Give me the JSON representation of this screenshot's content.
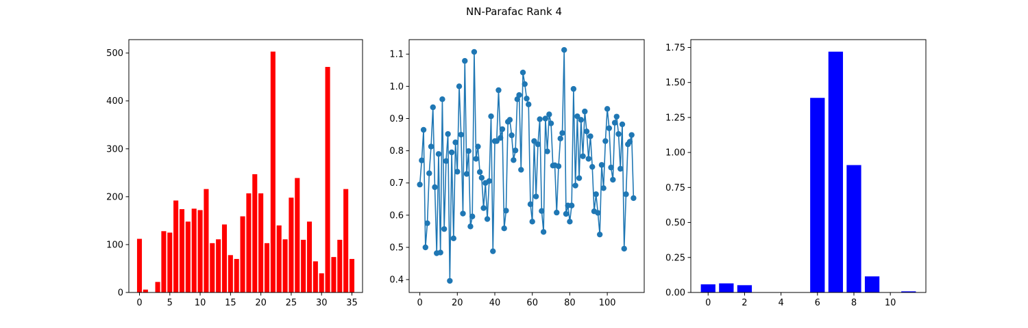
{
  "figure": {
    "title": "NN-Parafac Rank 4"
  },
  "chart_data": [
    {
      "type": "bar",
      "color": "#ff0000",
      "x": [
        0,
        1,
        2,
        3,
        4,
        5,
        6,
        7,
        8,
        9,
        10,
        11,
        12,
        13,
        14,
        15,
        16,
        17,
        18,
        19,
        20,
        21,
        22,
        23,
        24,
        25,
        26,
        27,
        28,
        29,
        30,
        31,
        32,
        33,
        34,
        35
      ],
      "values": [
        112,
        6,
        0,
        22,
        128,
        125,
        192,
        174,
        148,
        175,
        172,
        216,
        103,
        111,
        142,
        78,
        70,
        159,
        207,
        247,
        207,
        103,
        503,
        140,
        111,
        198,
        239,
        110,
        148,
        65,
        40,
        471,
        74,
        110,
        216,
        70
      ],
      "xlim": [
        -1.75,
        36.75
      ],
      "ylim": [
        0,
        528
      ],
      "xticks": [
        0,
        5,
        10,
        15,
        20,
        25,
        30,
        35
      ],
      "xtick_labels": [
        "0",
        "5",
        "10",
        "15",
        "20",
        "25",
        "30",
        "35"
      ],
      "yticks": [
        0,
        100,
        200,
        300,
        400,
        500
      ],
      "ytick_labels": [
        "0",
        "100",
        "200",
        "300",
        "400",
        "500"
      ],
      "bar_width": 0.8
    },
    {
      "type": "line",
      "color": "#1f77b4",
      "markers": true,
      "x": [
        0,
        1,
        2,
        3,
        4,
        5,
        6,
        7,
        8,
        9,
        10,
        11,
        12,
        13,
        14,
        15,
        16,
        17,
        18,
        19,
        20,
        21,
        22,
        23,
        24,
        25,
        26,
        27,
        28,
        29,
        30,
        31,
        32,
        33,
        34,
        35,
        36,
        37,
        38,
        39,
        40,
        41,
        42,
        43,
        44,
        45,
        46,
        47,
        48,
        49,
        50,
        51,
        52,
        53,
        54,
        55,
        56,
        57,
        58,
        59,
        60,
        61,
        62,
        63,
        64,
        65,
        66,
        67,
        68,
        69,
        70,
        71,
        72,
        73,
        74,
        75,
        76,
        77,
        78,
        79,
        80,
        81,
        82,
        83,
        84,
        85,
        86,
        87,
        88,
        89,
        90,
        91,
        92,
        93,
        94,
        95,
        96,
        97,
        98,
        99,
        100,
        101,
        102,
        103,
        104,
        105,
        106,
        107,
        108,
        109,
        110,
        111,
        112,
        113,
        114
      ],
      "values": [
        0.695,
        0.77,
        0.865,
        0.5,
        0.575,
        0.73,
        0.813,
        0.935,
        0.687,
        0.482,
        0.79,
        0.484,
        0.96,
        0.557,
        0.768,
        0.852,
        0.396,
        0.795,
        0.528,
        0.826,
        0.735,
        1.0,
        0.85,
        0.605,
        1.079,
        0.728,
        0.799,
        0.565,
        0.596,
        1.107,
        0.775,
        0.813,
        0.734,
        0.716,
        0.622,
        0.7,
        0.588,
        0.706,
        0.907,
        0.488,
        0.83,
        0.83,
        0.988,
        0.84,
        0.867,
        0.559,
        0.614,
        0.89,
        0.896,
        0.848,
        0.771,
        0.801,
        0.96,
        0.973,
        0.741,
        1.043,
        1.007,
        0.962,
        0.944,
        0.634,
        0.58,
        0.83,
        0.658,
        0.82,
        0.898,
        0.613,
        0.548,
        0.9,
        0.798,
        0.913,
        0.885,
        0.754,
        0.755,
        0.608,
        0.752,
        0.838,
        0.855,
        1.113,
        0.604,
        0.63,
        0.58,
        0.63,
        0.992,
        0.692,
        0.907,
        0.715,
        0.896,
        0.783,
        0.922,
        0.86,
        0.775,
        0.845,
        0.75,
        0.612,
        0.665,
        0.607,
        0.54,
        0.756,
        0.684,
        0.83,
        0.93,
        0.87,
        0.748,
        0.71,
        0.887,
        0.906,
        0.852,
        0.744,
        0.882,
        0.496,
        0.665,
        0.82,
        0.828,
        0.849,
        0.653
      ],
      "xlim": [
        -5.7,
        119.7
      ],
      "ylim": [
        0.36,
        1.145
      ],
      "xticks": [
        0,
        20,
        40,
        60,
        80,
        100
      ],
      "xtick_labels": [
        "0",
        "20",
        "40",
        "60",
        "80",
        "100"
      ],
      "yticks": [
        0.4,
        0.5,
        0.6,
        0.7,
        0.8,
        0.9,
        1.0,
        1.1
      ],
      "ytick_labels": [
        "0.4",
        "0.5",
        "0.6",
        "0.7",
        "0.8",
        "0.9",
        "1.0",
        "1.1"
      ]
    },
    {
      "type": "bar",
      "color": "#0000ff",
      "x": [
        0,
        1,
        2,
        3,
        4,
        5,
        6,
        7,
        8,
        9,
        10,
        11
      ],
      "values": [
        0.058,
        0.065,
        0.052,
        0,
        0,
        0,
        1.39,
        1.72,
        0.91,
        0.115,
        0,
        0.008
      ],
      "xlim": [
        -0.95,
        11.95
      ],
      "ylim": [
        0,
        1.806
      ],
      "xticks": [
        0,
        2,
        4,
        6,
        8,
        10
      ],
      "xtick_labels": [
        "0",
        "2",
        "4",
        "6",
        "8",
        "10"
      ],
      "yticks": [
        0.0,
        0.25,
        0.5,
        0.75,
        1.0,
        1.25,
        1.5,
        1.75
      ],
      "ytick_labels": [
        "0.00",
        "0.25",
        "0.50",
        "0.75",
        "1.00",
        "1.25",
        "1.50",
        "1.75"
      ],
      "bar_width": 0.8
    }
  ]
}
